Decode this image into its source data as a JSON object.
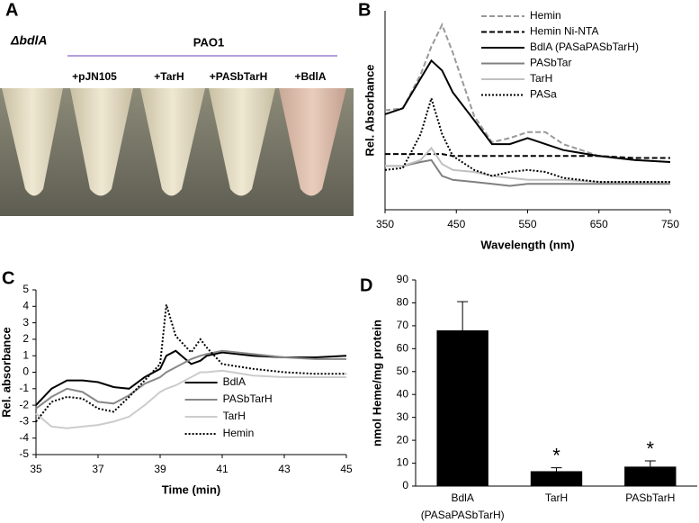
{
  "photo_panel": {
    "panel_label": "A",
    "strain": "ΔbdlA",
    "parent_strain": "PAO1",
    "tube_labels": [
      "+pJN105",
      "+TarH",
      "+PASbTarH",
      "+BdlA"
    ]
  },
  "chart_data": [
    {
      "type": "line",
      "panel_label": "B",
      "x_label": "Wavelength (nm)",
      "y_label": "Rel. Absorbance",
      "x": [
        350,
        375,
        400,
        415,
        430,
        445,
        475,
        500,
        525,
        550,
        575,
        600,
        650,
        700,
        750
      ],
      "xlim": [
        350,
        750
      ],
      "xticks": [
        350,
        450,
        550,
        650,
        750
      ],
      "ylim": [
        0,
        1
      ],
      "legend": "upper right",
      "series": [
        {
          "name": "Hemin",
          "color": "#999999",
          "style": "dashed",
          "values": [
            0.5,
            0.51,
            0.68,
            0.82,
            0.93,
            0.79,
            0.47,
            0.34,
            0.36,
            0.39,
            0.39,
            0.33,
            0.27,
            0.25,
            0.24
          ]
        },
        {
          "name": "Hemin Ni-NTA",
          "color": "#000000",
          "style": "dashed",
          "values": [
            0.28,
            0.28,
            0.28,
            0.28,
            0.28,
            0.27,
            0.27,
            0.27,
            0.27,
            0.27,
            0.27,
            0.27,
            0.27,
            0.26,
            0.26
          ]
        },
        {
          "name": "BdlA (PASaPASbTarH)",
          "color": "#000000",
          "style": "solid",
          "values": [
            0.48,
            0.51,
            0.66,
            0.75,
            0.7,
            0.59,
            0.45,
            0.33,
            0.33,
            0.36,
            0.33,
            0.3,
            0.27,
            0.25,
            0.24
          ]
        },
        {
          "name": "PASbTar",
          "color": "#808080",
          "style": "solid",
          "values": [
            0.22,
            0.22,
            0.24,
            0.25,
            0.17,
            0.15,
            0.14,
            0.13,
            0.12,
            0.13,
            0.13,
            0.13,
            0.13,
            0.13,
            0.13
          ]
        },
        {
          "name": "TarH",
          "color": "#c0c0c0",
          "style": "solid",
          "values": [
            0.22,
            0.22,
            0.25,
            0.31,
            0.23,
            0.2,
            0.19,
            0.17,
            0.16,
            0.15,
            0.15,
            0.15,
            0.14,
            0.14,
            0.14
          ]
        },
        {
          "name": "PASa",
          "color": "#000000",
          "style": "dotted",
          "values": [
            0.2,
            0.21,
            0.38,
            0.56,
            0.38,
            0.27,
            0.2,
            0.17,
            0.19,
            0.2,
            0.19,
            0.16,
            0.14,
            0.14,
            0.14
          ]
        }
      ]
    },
    {
      "type": "line",
      "panel_label": "C",
      "x_label": "Time (min)",
      "y_label": "Rel. absorbance",
      "x": [
        35,
        35.5,
        36,
        36.5,
        37,
        37.5,
        38,
        38.5,
        39,
        39.2,
        39.5,
        40,
        40.3,
        40.5,
        41,
        42,
        43,
        44,
        45
      ],
      "xlim": [
        35,
        45
      ],
      "xticks": [
        35,
        37,
        39,
        41,
        43,
        45
      ],
      "ylim": [
        -5,
        5
      ],
      "yticks": [
        -5,
        -4,
        -3,
        -2,
        -1,
        0,
        1,
        2,
        3,
        4,
        5
      ],
      "legend": "lower center",
      "series": [
        {
          "name": "BdlA",
          "color": "#000000",
          "style": "solid",
          "values": [
            -2,
            -1,
            -0.5,
            -0.5,
            -0.6,
            -0.9,
            -1,
            -0.3,
            0.2,
            1.0,
            1.3,
            0.5,
            0.7,
            1.0,
            1.2,
            1.0,
            0.9,
            0.9,
            1.0
          ]
        },
        {
          "name": "PASbTarH",
          "color": "#888888",
          "style": "solid",
          "values": [
            -2.2,
            -1.5,
            -1.0,
            -1.2,
            -1.8,
            -1.9,
            -1.4,
            -0.7,
            -0.3,
            0,
            0.3,
            0.8,
            1.0,
            1.1,
            1.3,
            1.1,
            0.9,
            0.8,
            0.8
          ]
        },
        {
          "name": "TarH",
          "color": "#cccccc",
          "style": "solid",
          "values": [
            -2.5,
            -3.3,
            -3.4,
            -3.3,
            -3.2,
            -3.0,
            -2.7,
            -2.0,
            -1.2,
            -1.0,
            -0.8,
            -0.3,
            0,
            0,
            0.1,
            -0.2,
            -0.3,
            -0.3,
            -0.3
          ]
        },
        {
          "name": "Hemin",
          "color": "#000000",
          "style": "dotted",
          "values": [
            -3,
            -1.8,
            -1.5,
            -1.6,
            -2.2,
            -2.4,
            -1.5,
            -0.5,
            0.5,
            4.1,
            2.2,
            1.2,
            2.0,
            1.5,
            0.5,
            0.2,
            0,
            -0.1,
            -0.1
          ]
        }
      ]
    },
    {
      "type": "bar",
      "panel_label": "D",
      "y_label": "nmol Heme/mg protein",
      "categories": [
        "BdlA (PASaPASbTarH)",
        "TarH",
        "PASbTarH"
      ],
      "values": [
        68,
        6.5,
        8.5
      ],
      "errors": [
        12.5,
        1.5,
        2.5
      ],
      "significance": [
        null,
        "*",
        "*"
      ],
      "color": "#000000",
      "ylim": [
        0,
        90
      ],
      "yticks": [
        0,
        10,
        20,
        30,
        40,
        50,
        60,
        70,
        80,
        90
      ]
    }
  ]
}
